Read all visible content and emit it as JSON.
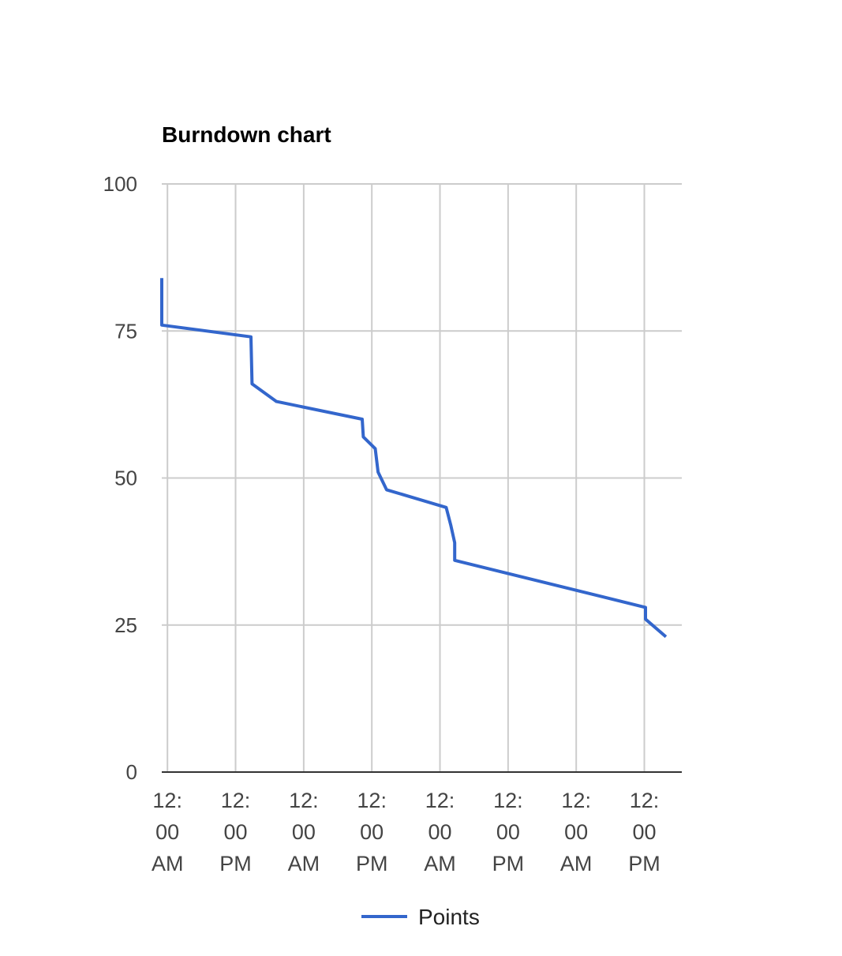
{
  "chart_data": {
    "type": "line",
    "title": "Burndown chart",
    "xlabel": "",
    "ylabel": "",
    "ylim": [
      0,
      100
    ],
    "yticks": [
      "0",
      "25",
      "50",
      "75",
      "100"
    ],
    "xticks": [
      [
        "12:",
        "00",
        "AM"
      ],
      [
        "12:",
        "00",
        "PM"
      ],
      [
        "12:",
        "00",
        "AM"
      ],
      [
        "12:",
        "00",
        "PM"
      ],
      [
        "12:",
        "00",
        "AM"
      ],
      [
        "12:",
        "00",
        "PM"
      ],
      [
        "12:",
        "00",
        "AM"
      ],
      [
        "12:",
        "00",
        "PM"
      ]
    ],
    "x_unit": "hours",
    "xlim": [
      -1,
      90.6
    ],
    "grid": true,
    "legend_position": "bottom",
    "series": [
      {
        "name": "Points",
        "color": "#3366cc",
        "points": [
          [
            -1,
            84
          ],
          [
            -1,
            76
          ],
          [
            14.7,
            74
          ],
          [
            14.9,
            66
          ],
          [
            19.2,
            63
          ],
          [
            34.3,
            60
          ],
          [
            34.5,
            57
          ],
          [
            36.6,
            55
          ],
          [
            37.1,
            51
          ],
          [
            38.6,
            48
          ],
          [
            49.1,
            45
          ],
          [
            49.9,
            42
          ],
          [
            50.6,
            39
          ],
          [
            50.6,
            36
          ],
          [
            84.2,
            28
          ],
          [
            84.2,
            26
          ],
          [
            87.8,
            23
          ]
        ]
      }
    ]
  }
}
